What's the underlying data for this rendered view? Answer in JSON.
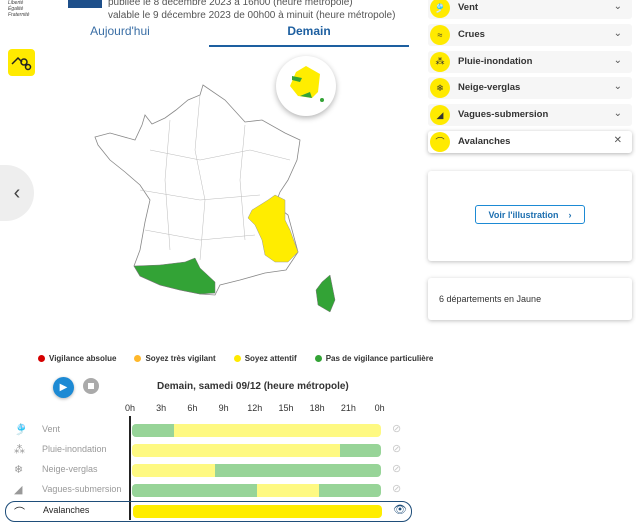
{
  "header": {
    "logo_motto": [
      "Liberté",
      "Égalité",
      "Fraternité"
    ],
    "published": "publiée le 8 décembre 2023 à 16h00 (heure métropole)",
    "valid": "valable le 9 décembre 2023 de 00h00 à minuit (heure métropole)"
  },
  "tabs": [
    {
      "label": "Aujourd'hui",
      "active": false
    },
    {
      "label": "Demain",
      "active": true
    }
  ],
  "map": {
    "yellow_color": "#ffed00",
    "green_color": "#33a336",
    "previous_icon": "chevron-left-icon"
  },
  "legend": [
    {
      "label": "Vigilance absolue",
      "color": "#d50000"
    },
    {
      "label": "Soyez très vigilant",
      "color": "#ffb82b"
    },
    {
      "label": "Soyez attentif",
      "color": "#ffea00"
    },
    {
      "label": "Pas de vigilance particulière",
      "color": "#33a336"
    }
  ],
  "timeline": {
    "title": "Demain, samedi 09/12 (heure métropole)",
    "hours": [
      "0h",
      "3h",
      "6h",
      "9h",
      "12h",
      "15h",
      "18h",
      "21h",
      "0h"
    ],
    "rows": [
      {
        "label": "Vent",
        "icon": "wind-icon",
        "segments": [
          [
            "green",
            0,
            4
          ],
          [
            "yellow",
            4,
            24
          ]
        ],
        "visible": false
      },
      {
        "label": "Pluie-inondation",
        "icon": "rain-flood-icon",
        "segments": [
          [
            "yellow",
            0,
            20
          ],
          [
            "green",
            20,
            24
          ]
        ],
        "visible": false
      },
      {
        "label": "Neige-verglas",
        "icon": "snow-ice-icon",
        "segments": [
          [
            "yellow",
            0,
            8
          ],
          [
            "green",
            8,
            24
          ]
        ],
        "visible": false
      },
      {
        "label": "Vagues-submersion",
        "icon": "waves-icon",
        "segments": [
          [
            "green",
            0,
            12
          ],
          [
            "yellow",
            12,
            18
          ],
          [
            "green",
            18,
            24
          ]
        ],
        "visible": false
      },
      {
        "label": "Avalanches",
        "icon": "avalanche-icon",
        "segments": [
          [
            "yellow",
            0,
            24
          ]
        ],
        "visible": true,
        "selected": true
      }
    ]
  },
  "sidebar": {
    "items": [
      {
        "label": "Vent",
        "icon": "wind-icon"
      },
      {
        "label": "Crues",
        "icon": "flood-icon"
      },
      {
        "label": "Pluie-inondation",
        "icon": "rain-flood-icon"
      },
      {
        "label": "Neige-verglas",
        "icon": "snow-ice-icon"
      },
      {
        "label": "Vagues-submersion",
        "icon": "waves-icon"
      },
      {
        "label": "Avalanches",
        "icon": "avalanche-icon",
        "active": true
      }
    ],
    "illustration_button": "Voir l'illustration",
    "departments": "6 départements en Jaune"
  }
}
